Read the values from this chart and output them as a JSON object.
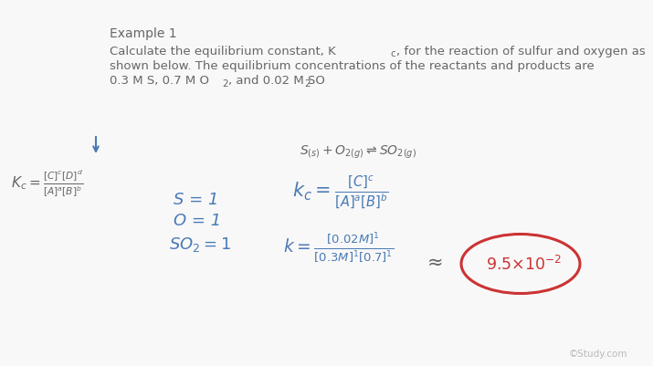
{
  "bg_color": "#f8f8f8",
  "text_color": "#666666",
  "blue_color": "#4a7ab5",
  "red_color": "#cc3333",
  "watermark": "©Study.com",
  "title": "Example 1",
  "desc1": "Calculate the equilibrium constant, K",
  "desc1_sub": "c",
  "desc1b": ", for the reaction of sulfur and oxygen as",
  "desc2": "shown below. The equilibrium concentrations of the reactants and products are",
  "desc3a": "0.3 M S, 0.7 M O",
  "desc3b": ", and 0.02 M SO",
  "desc3c": "."
}
